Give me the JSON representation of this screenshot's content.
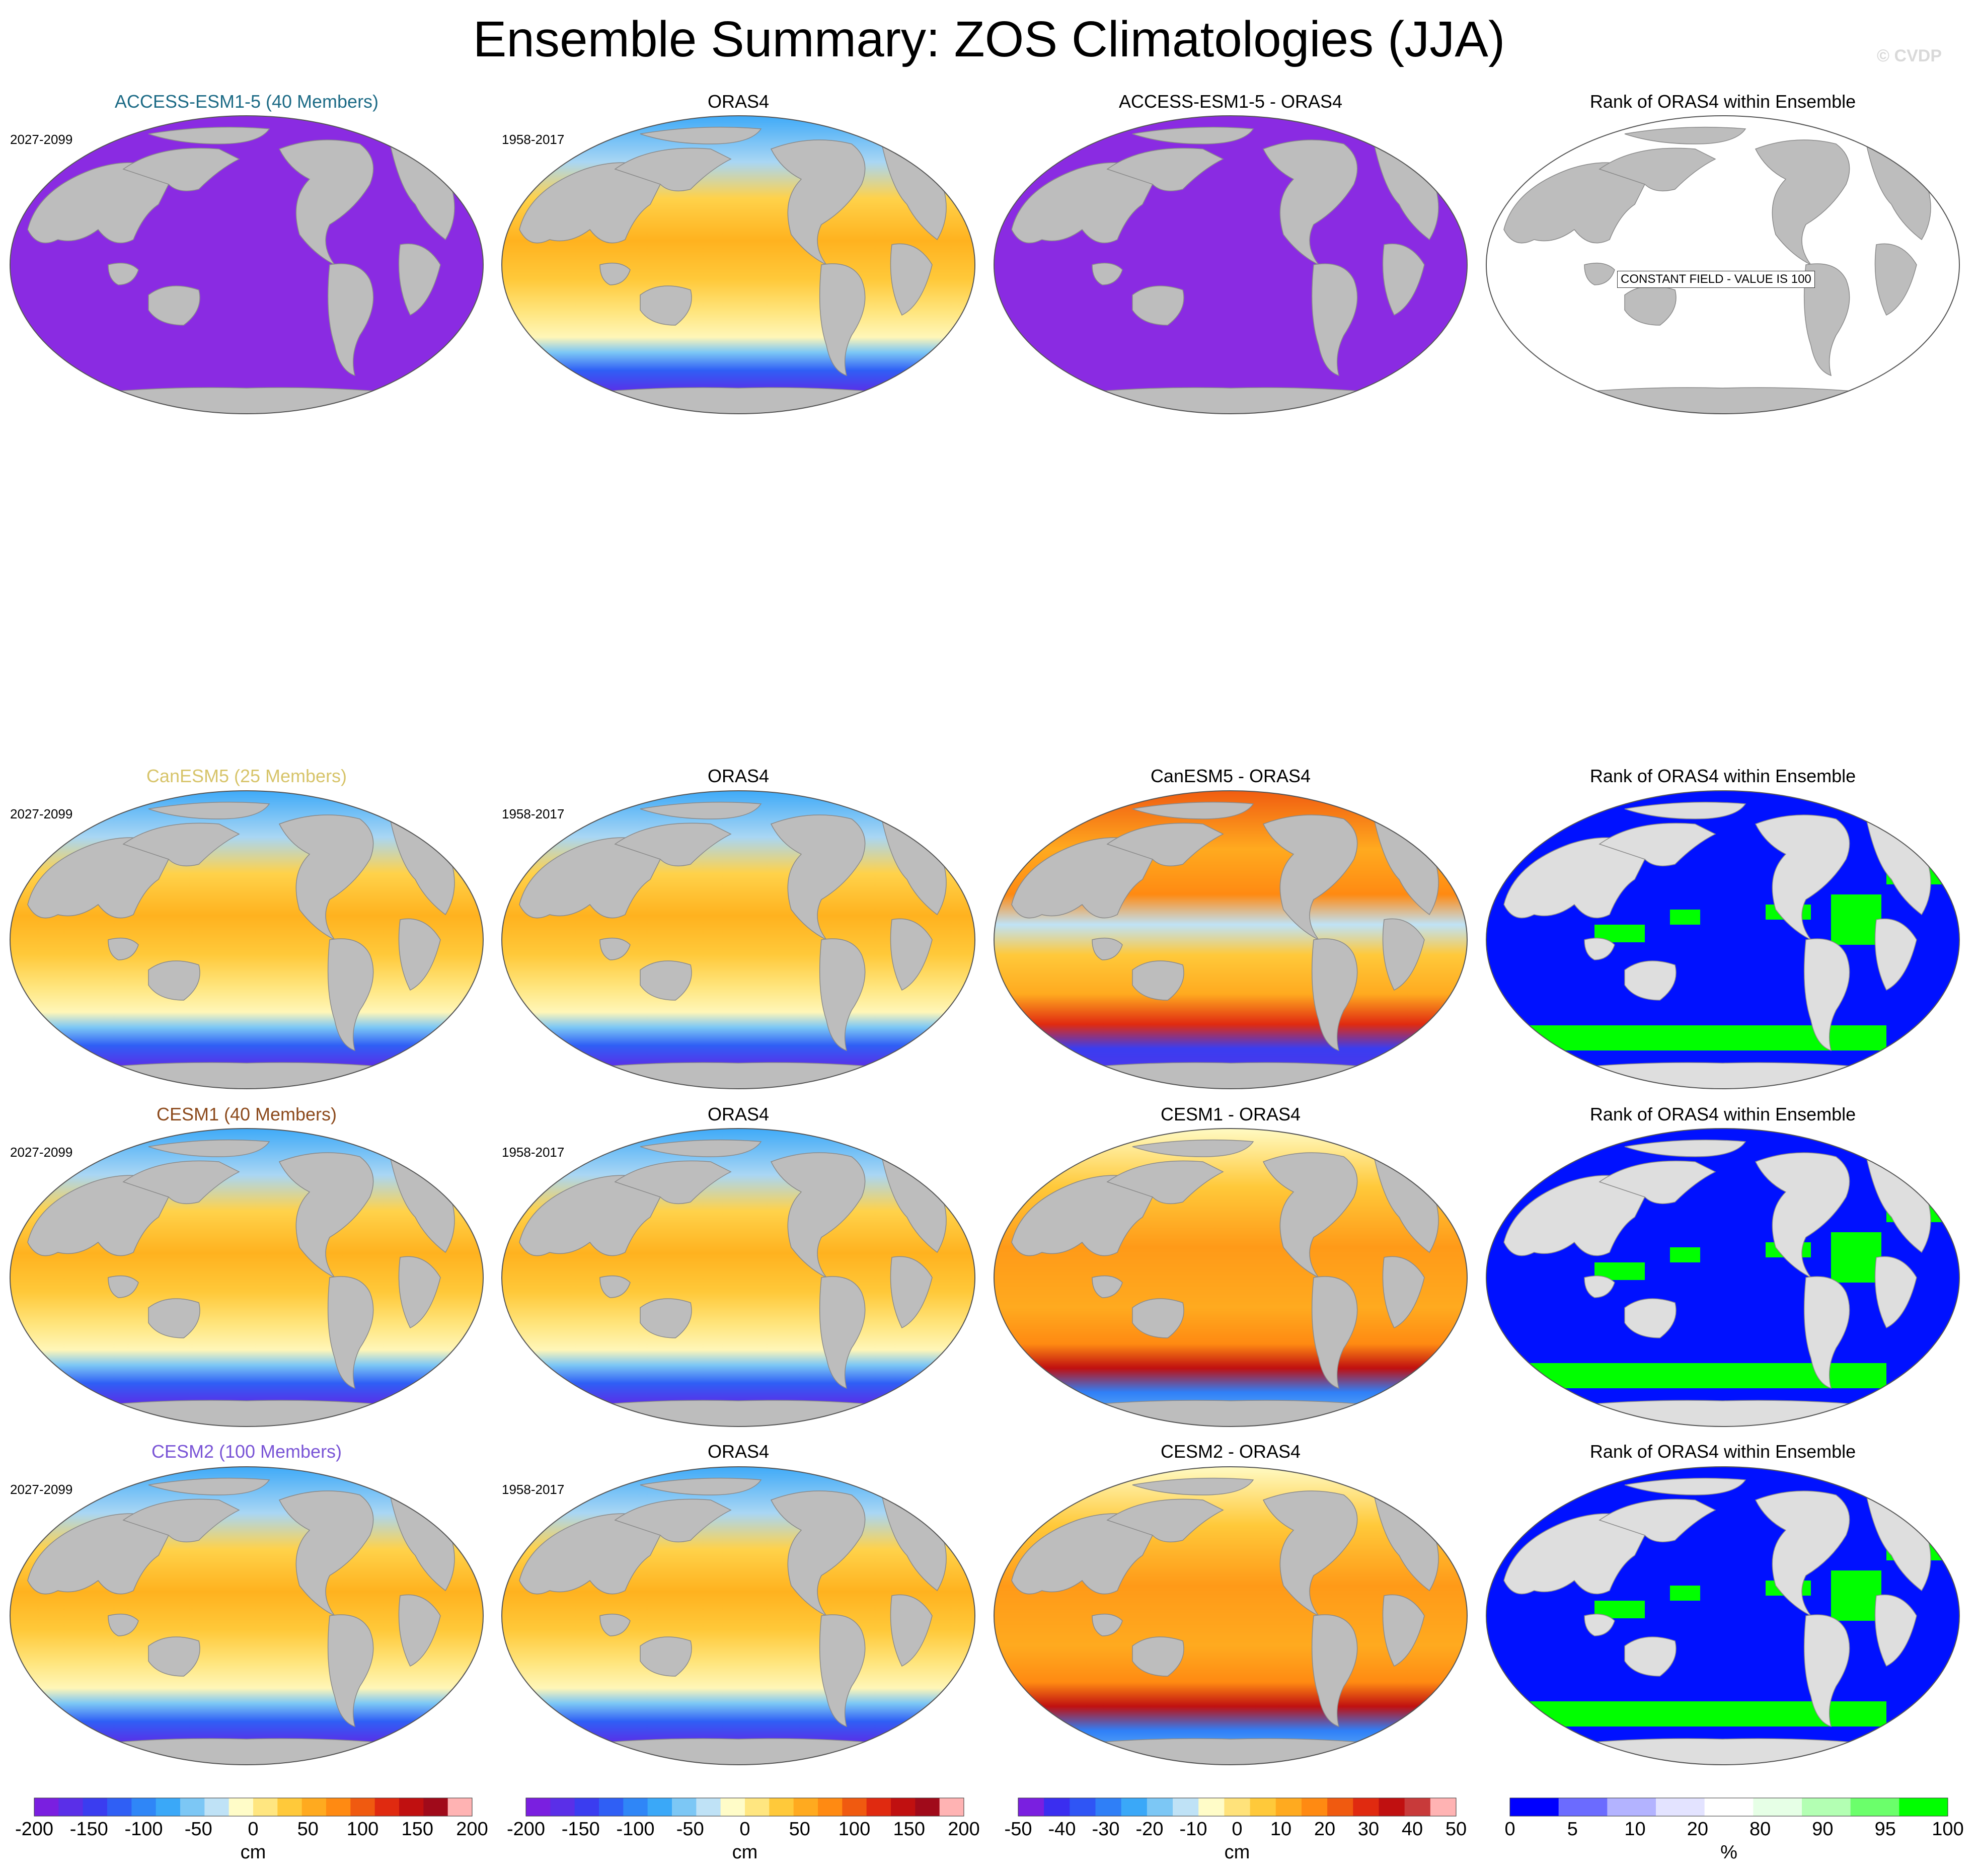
{
  "title": "Ensemble Summary: ZOS Climatologies (JJA)",
  "copyright": "© CVDP",
  "colors": {
    "land": "#bdbdbd",
    "land_light": "#dedede",
    "ocean_edge": "#bdbdbd",
    "purple": "#8a2be2",
    "rank_blue": "#0011ff",
    "rank_green": "#00ff00"
  },
  "rows": [
    {
      "model": "ACCESS-ESM1-5 (40 Members)",
      "model_color": "#1d6b86",
      "model_period": "2027-2099",
      "obs": "ORAS4",
      "obs_period": "1958-2017",
      "diff": "ACCESS-ESM1-5 - ORAS4",
      "rank": "Rank of ORAS4 within Ensemble",
      "constant_note": "CONSTANT FIELD - VALUE IS 100"
    },
    {
      "model": "CanESM5 (25 Members)",
      "model_color": "#d7c46a",
      "model_period": "2027-2099",
      "obs": "ORAS4",
      "obs_period": "1958-2017",
      "diff": "CanESM5 - ORAS4",
      "rank": "Rank of ORAS4 within Ensemble"
    },
    {
      "model": "CESM1 (40 Members)",
      "model_color": "#8c4a1c",
      "model_period": "2027-2099",
      "obs": "ORAS4",
      "obs_period": "1958-2017",
      "diff": "CESM1 - ORAS4",
      "rank": "Rank of ORAS4 within Ensemble"
    },
    {
      "model": "CESM2 (100 Members)",
      "model_color": "#7a55d6",
      "model_period": "2027-2099",
      "obs": "ORAS4",
      "obs_period": "1958-2017",
      "diff": "CESM2 - ORAS4",
      "rank": "Rank of ORAS4 within Ensemble"
    }
  ],
  "colorbars": [
    {
      "unit": "cm",
      "ticks": [
        "-200",
        "-150",
        "-100",
        "-50",
        "0",
        "50",
        "100",
        "150",
        "200"
      ],
      "colors": [
        "#7a1fe0",
        "#5a2fe8",
        "#3a3df0",
        "#2f5ff5",
        "#2f86f7",
        "#3aa8f8",
        "#7cc7f5",
        "#bfe2f6",
        "#fffcc8",
        "#ffe680",
        "#ffc93a",
        "#ffaa1f",
        "#ff8a12",
        "#f05a10",
        "#e02a10",
        "#c01010",
        "#a00a1a",
        "#ffb3b3"
      ]
    },
    {
      "unit": "cm",
      "ticks": [
        "-200",
        "-150",
        "-100",
        "-50",
        "0",
        "50",
        "100",
        "150",
        "200"
      ],
      "colors": [
        "#7a1fe0",
        "#5a2fe8",
        "#3a3df0",
        "#2f5ff5",
        "#2f86f7",
        "#3aa8f8",
        "#7cc7f5",
        "#bfe2f6",
        "#fffcc8",
        "#ffe680",
        "#ffc93a",
        "#ffaa1f",
        "#ff8a12",
        "#f05a10",
        "#e02a10",
        "#c01010",
        "#a00a1a",
        "#ffb3b3"
      ]
    },
    {
      "unit": "cm",
      "ticks": [
        "-50",
        "-40",
        "-30",
        "-20",
        "-10",
        "0",
        "10",
        "20",
        "30",
        "40",
        "50"
      ],
      "colors": [
        "#7a1fe0",
        "#3a2ef0",
        "#2f55f5",
        "#2f7ff7",
        "#3aa8f8",
        "#7cc7f5",
        "#bfe2f6",
        "#fffcc8",
        "#ffe27a",
        "#ffc93a",
        "#ffaa1f",
        "#ff8a12",
        "#f05a10",
        "#e02a10",
        "#c01010",
        "#c83a3a",
        "#ffb3b3"
      ]
    },
    {
      "unit": "%",
      "ticks": [
        "0",
        "5",
        "10",
        "20",
        "80",
        "90",
        "95",
        "100"
      ],
      "colors": [
        "#0000ff",
        "#6b6bff",
        "#b3b3ff",
        "#e3e3ff",
        "#ffffff",
        "#e6ffe6",
        "#b3ffb3",
        "#6bff6b",
        "#00ff00"
      ]
    }
  ],
  "chart_data": [
    {
      "type": "heatmap",
      "title": "ACCESS-ESM1-5 (40 Members)",
      "subtitle": "2027-2099",
      "unit": "cm",
      "range": [
        -200,
        200
      ],
      "field": "uniform purple (below scale)"
    },
    {
      "type": "heatmap",
      "title": "ORAS4",
      "subtitle": "1958-2017",
      "unit": "cm",
      "range": [
        -200,
        200
      ]
    },
    {
      "type": "heatmap",
      "title": "ACCESS-ESM1-5 - ORAS4",
      "unit": "cm",
      "range": [
        -50,
        50
      ]
    },
    {
      "type": "heatmap",
      "title": "Rank of ORAS4 within Ensemble",
      "unit": "%",
      "note": "CONSTANT FIELD - VALUE IS 100"
    },
    {
      "type": "heatmap",
      "title": "CanESM5 (25 Members)",
      "subtitle": "2027-2099",
      "unit": "cm",
      "range": [
        -200,
        200
      ]
    },
    {
      "type": "heatmap",
      "title": "CanESM5 - ORAS4",
      "unit": "cm",
      "range": [
        -50,
        50
      ]
    },
    {
      "type": "heatmap",
      "title": "CESM1 (40 Members)",
      "subtitle": "2027-2099",
      "unit": "cm",
      "range": [
        -200,
        200
      ]
    },
    {
      "type": "heatmap",
      "title": "CESM1 - ORAS4",
      "unit": "cm",
      "range": [
        -50,
        50
      ]
    },
    {
      "type": "heatmap",
      "title": "CESM2 (100 Members)",
      "subtitle": "2027-2099",
      "unit": "cm",
      "range": [
        -200,
        200
      ]
    },
    {
      "type": "heatmap",
      "title": "CESM2 - ORAS4",
      "unit": "cm",
      "range": [
        -50,
        50
      ]
    }
  ]
}
